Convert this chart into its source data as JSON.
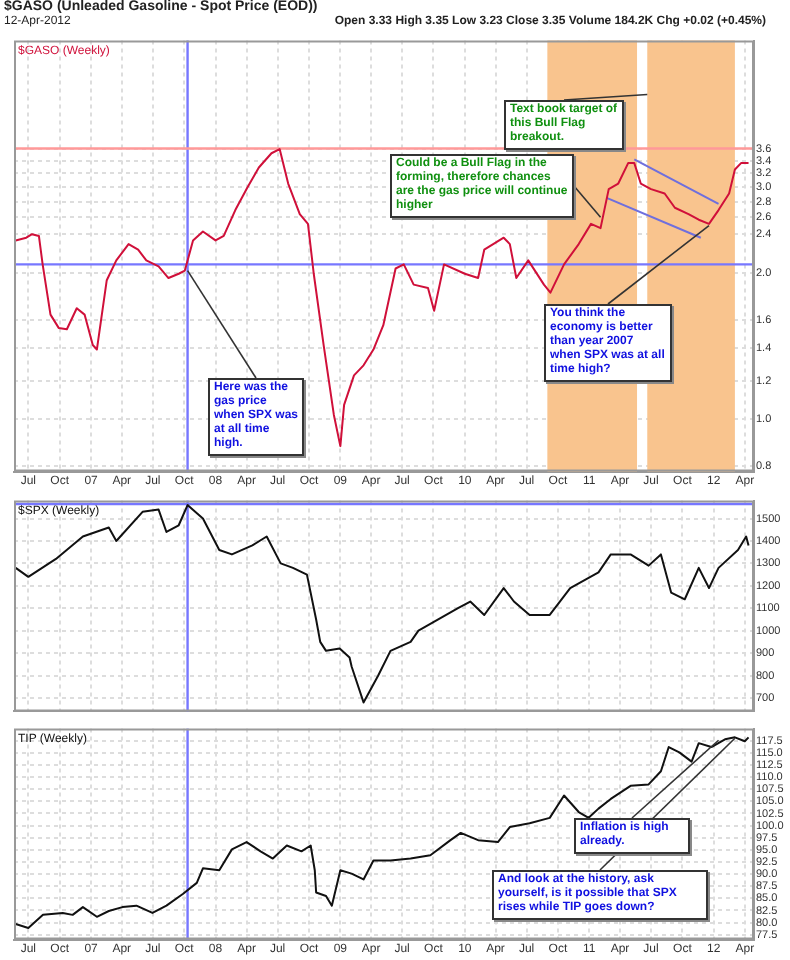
{
  "chart_data": [
    {
      "type": "line",
      "title": "$GASO (Unleaded Gasoline - Spot Price (EOD))",
      "subtitle": "12-Apr-2012",
      "log": "y",
      "grid": true,
      "xlim": [
        "2006-05-20",
        "2012-04-28"
      ],
      "xticks": [
        {
          "value": "2006-07",
          "label": "Jul"
        },
        {
          "value": "2006-10",
          "label": "Oct"
        },
        {
          "value": "2007",
          "label": "07"
        },
        {
          "value": "2007-04",
          "label": "Apr"
        },
        {
          "value": "2007-07",
          "label": "Jul"
        },
        {
          "value": "2007-10",
          "label": "Oct"
        },
        {
          "value": "2008",
          "label": "08"
        },
        {
          "value": "2008-04",
          "label": "Apr"
        },
        {
          "value": "2008-07",
          "label": "Jul"
        },
        {
          "value": "2008-10",
          "label": "Oct"
        },
        {
          "value": "2009",
          "label": "09"
        },
        {
          "value": "2009-04",
          "label": "Apr"
        },
        {
          "value": "2009-07",
          "label": "Jul"
        },
        {
          "value": "2009-10",
          "label": "Oct"
        },
        {
          "value": "2010",
          "label": "10"
        },
        {
          "value": "2010-04",
          "label": "Apr"
        },
        {
          "value": "2010-07",
          "label": "Jul"
        },
        {
          "value": "2010-10",
          "label": "Oct"
        },
        {
          "value": "2011",
          "label": "11"
        },
        {
          "value": "2011-04",
          "label": "Apr"
        },
        {
          "value": "2011-07",
          "label": "Jul"
        },
        {
          "value": "2011-10",
          "label": "Oct"
        },
        {
          "value": "2012",
          "label": "12"
        },
        {
          "value": "2012-04",
          "label": "Apr"
        }
      ],
      "ylim": [
        0.78,
        6.0
      ],
      "yticks": [
        0.8,
        {
          "value": 1,
          "label": "1.0"
        },
        1.2,
        1.4,
        1.6,
        {
          "value": 2,
          "label": "2.0"
        },
        2.4,
        2.6,
        2.8,
        {
          "value": 3,
          "label": "3.0"
        },
        3.2,
        3.4,
        3.6
      ],
      "series": [
        {
          "name": "$GASO (Weekly)",
          "color": "#d0103a",
          "x": [
            "2006-05-25",
            "2006-06-25",
            "2006-07-12",
            "2006-08-01",
            "2006-08-12",
            "2006-09-04",
            "2006-09-28",
            "2006-10-22",
            "2006-11-20",
            "2006-12-13",
            "2007-01-06",
            "2007-01-18",
            "2007-02-16",
            "2007-03-16",
            "2007-04-21",
            "2007-05-19",
            "2007-06-12",
            "2007-07-18",
            "2007-08-16",
            "2007-09-15",
            "2007-10-03",
            "2007-10-27",
            "2007-11-25",
            "2008-01-01",
            "2008-01-25",
            "2008-02-28",
            "2008-04-03",
            "2008-05-07",
            "2008-06-13",
            "2008-07-07",
            "2008-08-01",
            "2008-09-04",
            "2008-09-28",
            "2008-10-15",
            "2008-11-13",
            "2008-12-13",
            "2009-01-01",
            "2009-01-12",
            "2009-02-10",
            "2009-03-10",
            "2009-04-08",
            "2009-05-07",
            "2009-06-12",
            "2009-07-06",
            "2009-08-04",
            "2009-09-15",
            "2009-10-03",
            "2009-11-01",
            "2010-01-01",
            "2010-02-09",
            "2010-02-27",
            "2010-04-25",
            "2010-05-13",
            "2010-06-01",
            "2010-07-06",
            "2010-08-21",
            "2010-09-09",
            "2010-10-19",
            "2010-12-01",
            "2011-01-06",
            "2011-02-03",
            "2011-02-27",
            "2011-03-27",
            "2011-04-25",
            "2011-05-13",
            "2011-06-01",
            "2011-07-01",
            "2011-08-10",
            "2011-09-09",
            "2011-10-19",
            "2011-11-18",
            "2011-12-18",
            "2012-01-15",
            "2012-02-15",
            "2012-03-03",
            "2012-03-21",
            "2012-04-12"
          ],
          "values": [
            2.33,
            2.36,
            2.4,
            2.38,
            2.08,
            1.64,
            1.54,
            1.53,
            1.69,
            1.64,
            1.42,
            1.39,
            1.93,
            2.12,
            2.29,
            2.23,
            2.12,
            2.06,
            1.95,
            1.99,
            2.02,
            2.33,
            2.43,
            2.33,
            2.38,
            2.69,
            2.99,
            3.29,
            3.52,
            3.59,
            3.05,
            2.64,
            2.52,
            1.99,
            1.42,
            1.02,
            0.88,
            1.07,
            1.23,
            1.29,
            1.39,
            1.56,
            2.04,
            2.08,
            1.89,
            1.86,
            1.67,
            2.08,
            1.99,
            1.95,
            2.23,
            2.36,
            2.29,
            1.95,
            2.12,
            1.89,
            1.82,
            2.08,
            2.29,
            2.52,
            2.47,
            2.97,
            3.05,
            3.36,
            3.36,
            3.05,
            2.97,
            2.91,
            2.72,
            2.64,
            2.57,
            2.52,
            2.69,
            2.91,
            3.26,
            3.36,
            3.36
          ]
        },
        {
          "type": "line",
          "color": "#6f6fdd",
          "x": [
            "2011-05-13",
            "2012-01-15"
          ],
          "values": [
            3.42,
            2.77
          ]
        },
        {
          "type": "line",
          "color": "#6f6fdd",
          "x": [
            "2011-02-21",
            "2011-11-24"
          ],
          "values": [
            2.85,
            2.36
          ]
        }
      ],
      "ref_lines": [
        {
          "axis": "x",
          "value": "2007-10-11",
          "color": "#7777ff"
        },
        {
          "axis": "y",
          "value": 2.08,
          "color": "#7777ff"
        },
        {
          "axis": "y",
          "value": 3.6,
          "color": "#ff9999"
        }
      ],
      "bands": [
        {
          "axis": "x",
          "from": "2010-08-31",
          "to": "2011-05-21",
          "color": "#f9c48e"
        },
        {
          "axis": "x",
          "from": "2011-06-20",
          "to": "2012-03-03",
          "color": "#f9c48e"
        }
      ],
      "annotations": [
        "Open 3.33 High 3.35 Low 3.23 Close 3.35 Volume 184.2K Chg +0.02 (+0.45%)",
        {
          "text": "Here was the gas price when SPX was at all time high.",
          "x": "2007-10-11",
          "y": 2.02
        },
        {
          "text": "Could be a Bull Flag in the forming, therefore chances are the gas price will continue higher",
          "x": "2011-02-03",
          "y": 2.6
        },
        {
          "text": "Text book target of this Bull Flag breakout.",
          "x": "2011-06-20",
          "y": 4.65
        },
        {
          "text": "You think the economy is better than year 2007 when SPX was at all time high?",
          "x": "2011-12-18",
          "y": 2.5
        }
      ]
    },
    {
      "type": "line",
      "grid": true,
      "tick_labels": "y",
      "xlim": [
        "2006-05-20",
        "2012-04-28"
      ],
      "xticks": [
        {
          "value": "2006-07",
          "label": null
        },
        {
          "value": "2006-10",
          "label": null
        },
        {
          "value": "2007",
          "label": null
        },
        {
          "value": "2007-04",
          "label": null
        },
        {
          "value": "2007-07",
          "label": null
        },
        {
          "value": "2007-10",
          "label": null
        },
        {
          "value": "2008",
          "label": null
        },
        {
          "value": "2008-04",
          "label": null
        },
        {
          "value": "2008-07",
          "label": null
        },
        {
          "value": "2008-10",
          "label": null
        },
        {
          "value": "2009",
          "label": null
        },
        {
          "value": "2009-04",
          "label": null
        },
        {
          "value": "2009-07",
          "label": null
        },
        {
          "value": "2009-10",
          "label": null
        },
        {
          "value": "2010",
          "label": null
        },
        {
          "value": "2010-04",
          "label": null
        },
        {
          "value": "2010-07",
          "label": null
        },
        {
          "value": "2010-10",
          "label": null
        },
        {
          "value": "2011",
          "label": null
        },
        {
          "value": "2011-04",
          "label": null
        },
        {
          "value": "2011-07",
          "label": null
        },
        {
          "value": "2011-10",
          "label": null
        },
        {
          "value": "2012",
          "label": null
        },
        {
          "value": "2012-04",
          "label": null
        }
      ],
      "ylim": [
        640,
        1580
      ],
      "yticks": [
        700,
        800,
        900,
        1000,
        1100,
        1200,
        1300,
        1400,
        1500
      ],
      "series": [
        {
          "name": "$SPX (Weekly)",
          "color": "#111111",
          "x": [
            "2006-05-25",
            "2006-07-01",
            "2006-09-20",
            "2006-12-08",
            "2007-02-22",
            "2007-03-16",
            "2007-06-01",
            "2007-07-18",
            "2007-08-10",
            "2007-09-15",
            "2007-10-11",
            "2007-11-25",
            "2008-01-12",
            "2008-02-18",
            "2008-04-18",
            "2008-05-30",
            "2008-07-10",
            "2008-08-15",
            "2008-09-25",
            "2008-10-22",
            "2008-11-03",
            "2008-11-20",
            "2008-12-30",
            "2009-01-28",
            "2009-02-03",
            "2009-03-10",
            "2009-04-22",
            "2009-05-28",
            "2009-07-26",
            "2009-08-18",
            "2009-10-15",
            "2009-12-12",
            "2010-01-17",
            "2010-02-27",
            "2010-04-25",
            "2010-05-25",
            "2010-07-10",
            "2010-09-07",
            "2010-11-06",
            "2011-01-28",
            "2011-03-05",
            "2011-05-02",
            "2011-06-24",
            "2011-07-30",
            "2011-08-29",
            "2011-10-08",
            "2011-11-18",
            "2011-12-18",
            "2012-01-15",
            "2012-03-12",
            "2012-04-05",
            "2012-04-12"
          ],
          "values": [
            1280,
            1240,
            1320,
            1420,
            1460,
            1400,
            1530,
            1540,
            1440,
            1470,
            1560,
            1500,
            1360,
            1340,
            1380,
            1420,
            1300,
            1280,
            1250,
            1050,
            950,
            910,
            920,
            880,
            840,
            680,
            800,
            910,
            950,
            1000,
            1050,
            1100,
            1130,
            1070,
            1190,
            1130,
            1070,
            1070,
            1190,
            1260,
            1340,
            1340,
            1290,
            1340,
            1170,
            1140,
            1280,
            1190,
            1280,
            1360,
            1420,
            1380
          ]
        }
      ],
      "ref_lines": [
        {
          "axis": "x",
          "value": "2007-10-11",
          "color": "#7777ff"
        },
        {
          "axis": "y",
          "value": 1565,
          "color": "#7777ff"
        }
      ]
    },
    {
      "type": "line",
      "grid": true,
      "xlim": [
        "2006-05-20",
        "2012-04-28"
      ],
      "xticks": [
        {
          "value": "2006-07",
          "label": "Jul"
        },
        {
          "value": "2006-10",
          "label": "Oct"
        },
        {
          "value": "2007",
          "label": "07"
        },
        {
          "value": "2007-04",
          "label": "Apr"
        },
        {
          "value": "2007-07",
          "label": "Jul"
        },
        {
          "value": "2007-10",
          "label": "Oct"
        },
        {
          "value": "2008",
          "label": "08"
        },
        {
          "value": "2008-04",
          "label": "Apr"
        },
        {
          "value": "2008-07",
          "label": "Jul"
        },
        {
          "value": "2008-10",
          "label": "Oct"
        },
        {
          "value": "2009",
          "label": "09"
        },
        {
          "value": "2009-04",
          "label": "Apr"
        },
        {
          "value": "2009-07",
          "label": "Jul"
        },
        {
          "value": "2009-10",
          "label": "Oct"
        },
        {
          "value": "2010",
          "label": "10"
        },
        {
          "value": "2010-04",
          "label": "Apr"
        },
        {
          "value": "2010-07",
          "label": "Jul"
        },
        {
          "value": "2010-10",
          "label": "Oct"
        },
        {
          "value": "2011",
          "label": "11"
        },
        {
          "value": "2011-04",
          "label": "Apr"
        },
        {
          "value": "2011-07",
          "label": "Jul"
        },
        {
          "value": "2011-10",
          "label": "Oct"
        },
        {
          "value": "2012",
          "label": "12"
        },
        {
          "value": "2012-04",
          "label": "Apr"
        }
      ],
      "ylim": [
        76.5,
        120
      ],
      "yticks": [
        77.5,
        {
          "value": 80,
          "label": "80.0"
        },
        82.5,
        {
          "value": 85,
          "label": "85.0"
        },
        87.5,
        {
          "value": 90,
          "label": "90.0"
        },
        92.5,
        {
          "value": 95,
          "label": "95.0"
        },
        97.5,
        {
          "value": 100,
          "label": "100.0"
        },
        102.5,
        {
          "value": 105,
          "label": "105.0"
        },
        107.5,
        {
          "value": 110,
          "label": "110.0"
        },
        112.5,
        {
          "value": 115,
          "label": "115.0"
        },
        117.5
      ],
      "series": [
        {
          "name": "TIP (Weekly)",
          "color": "#111111",
          "x": [
            "2006-05-25",
            "2006-07-01",
            "2006-08-13",
            "2006-10-10",
            "2006-11-08",
            "2006-12-08",
            "2007-01-18",
            "2007-02-22",
            "2007-04-03",
            "2007-05-14",
            "2007-06-30",
            "2007-08-10",
            "2007-09-27",
            "2007-11-07",
            "2007-11-25",
            "2008-01-12",
            "2008-02-18",
            "2008-04-01",
            "2008-05-12",
            "2008-06-17",
            "2008-07-28",
            "2008-09-09",
            "2008-10-06",
            "2008-10-18",
            "2008-10-22",
            "2008-11-20",
            "2008-12-07",
            "2009-01-01",
            "2009-02-03",
            "2009-03-10",
            "2009-04-08",
            "2009-05-28",
            "2009-07-26",
            "2009-09-22",
            "2009-11-20",
            "2009-12-20",
            "2010-02-09",
            "2010-04-08",
            "2010-05-13",
            "2010-07-10",
            "2010-09-07",
            "2010-10-19",
            "2010-12-01",
            "2010-12-30",
            "2011-01-28",
            "2011-03-05",
            "2011-05-02",
            "2011-06-24",
            "2011-07-30",
            "2011-08-22",
            "2011-09-22",
            "2011-10-28",
            "2011-11-18",
            "2011-12-25",
            "2012-02-03",
            "2012-03-03",
            "2012-04-01",
            "2012-04-12"
          ],
          "values": [
            79.7,
            78.9,
            81.6,
            82.0,
            81.6,
            83.2,
            81.2,
            82.4,
            83.2,
            83.5,
            82.0,
            83.5,
            85.9,
            88.2,
            91.2,
            90.8,
            95.1,
            96.6,
            94.7,
            93.2,
            95.9,
            94.7,
            95.9,
            90.8,
            86.2,
            85.5,
            83.5,
            90.8,
            90.1,
            88.9,
            92.8,
            92.8,
            93.2,
            93.9,
            97.0,
            98.5,
            97.0,
            96.6,
            99.7,
            100.5,
            101.6,
            106.2,
            102.8,
            101.6,
            103.5,
            105.5,
            108.2,
            108.5,
            111.2,
            116.2,
            115.1,
            113.2,
            117.0,
            116.2,
            117.8,
            118.2,
            117.4,
            118.2
          ]
        }
      ],
      "ref_lines": [
        {
          "axis": "x",
          "value": "2007-10-11",
          "color": "#7777ff"
        }
      ],
      "annotations": [
        {
          "text": "Inflation is high already.",
          "x": "2012-01-15",
          "y": 117.6
        },
        {
          "text": "And look at the history, ask yourself, is it possible that SPX rises while TIP goes down?",
          "x": "2012-03-03",
          "y": 118.0
        }
      ]
    }
  ]
}
